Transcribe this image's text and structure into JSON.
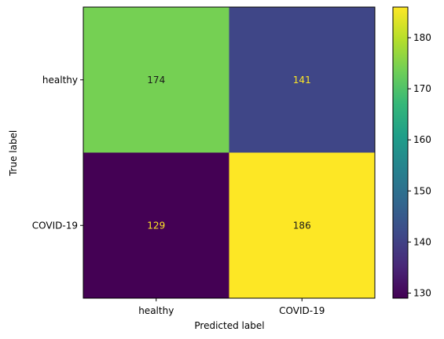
{
  "chart_data": {
    "type": "heatmap",
    "title": "",
    "xlabel": "Predicted label",
    "ylabel": "True label",
    "x_categories": [
      "healthy",
      "COVID-19"
    ],
    "y_categories": [
      "healthy",
      "COVID-19"
    ],
    "values": [
      [
        174,
        141
      ],
      [
        129,
        186
      ]
    ],
    "value_labels": [
      [
        "174",
        "141"
      ],
      [
        "129",
        "186"
      ]
    ],
    "colormap": "viridis",
    "colorbar": {
      "range": [
        129,
        186
      ],
      "ticks": [
        130,
        140,
        150,
        160,
        170,
        180
      ],
      "tick_labels": [
        "130",
        "140",
        "150",
        "160",
        "170",
        "180"
      ]
    },
    "text_colors": {
      "on_light": "#1a1a1a",
      "on_dark": "#fde725"
    },
    "grid": false
  }
}
